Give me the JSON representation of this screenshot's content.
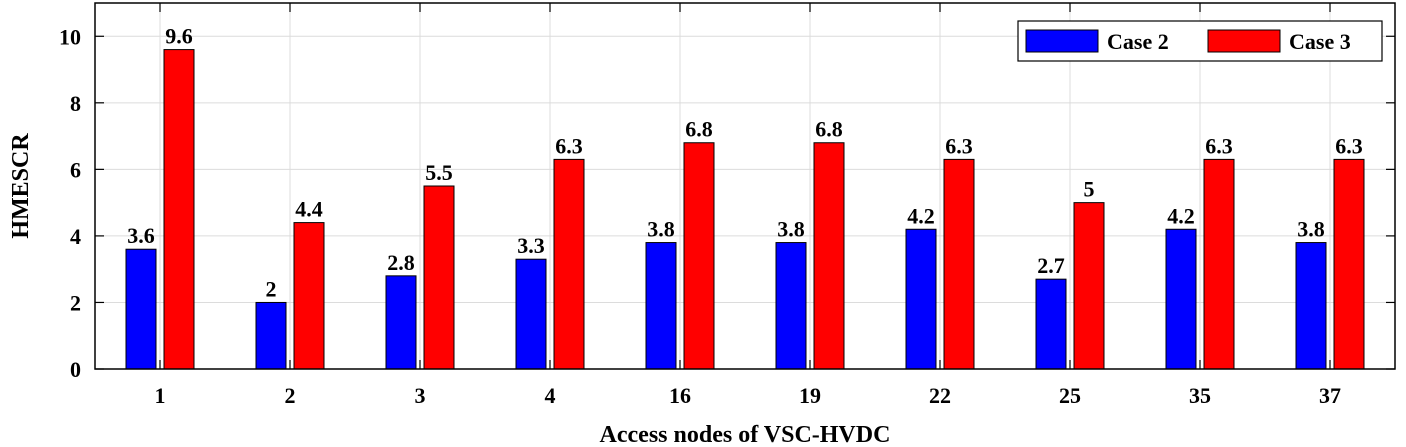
{
  "chart_data": {
    "type": "bar",
    "title": "",
    "xlabel": "Access nodes of VSC-HVDC",
    "ylabel": "HMESCR",
    "categories": [
      "1",
      "2",
      "3",
      "4",
      "16",
      "19",
      "22",
      "25",
      "35",
      "37"
    ],
    "series": [
      {
        "name": "Case 2",
        "color": "#0000ff",
        "values": [
          3.6,
          2,
          2.8,
          3.3,
          3.8,
          3.8,
          4.2,
          2.7,
          4.2,
          3.8
        ],
        "labels": [
          "3.6",
          "2",
          "2.8",
          "3.3",
          "3.8",
          "3.8",
          "4.2",
          "2.7",
          "4.2",
          "3.8"
        ]
      },
      {
        "name": "Case 3",
        "color": "#ff0000",
        "values": [
          9.6,
          4.4,
          5.5,
          6.3,
          6.8,
          6.8,
          6.3,
          5,
          6.3,
          6.3
        ],
        "labels": [
          "9.6",
          "4.4",
          "5.5",
          "6.3",
          "6.8",
          "6.8",
          "6.3",
          "5",
          "6.3",
          "6.3"
        ]
      }
    ],
    "ylim": [
      0,
      11
    ],
    "yticks": [
      0,
      2,
      4,
      6,
      8,
      10
    ],
    "ytick_labels": [
      "0",
      "2",
      "4",
      "6",
      "8",
      "10"
    ],
    "grid": true,
    "legend_position": "top-right"
  }
}
